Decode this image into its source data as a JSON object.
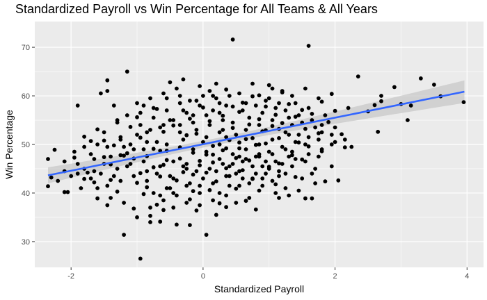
{
  "chart_data": {
    "type": "scatter",
    "title": "Standardized Payroll vs Win Percentage for All Teams & All Years",
    "xlabel": "Standardized Payroll",
    "ylabel": "Win Percentage",
    "xlim": [
      -2.55,
      4.25
    ],
    "ylim": [
      24.7,
      75.3
    ],
    "xticks": [
      -2,
      0,
      2,
      4
    ],
    "yticks": [
      30,
      40,
      50,
      60,
      70
    ],
    "grid": true,
    "legend": "none",
    "colors": {
      "panel": "#ebebeb",
      "grid": "#ffffff",
      "points": "#000000",
      "trend_line": "#3366ff",
      "confidence_band": "#c8c8c8"
    },
    "trend": {
      "method": "linear",
      "intercept": 50.05,
      "slope": 2.73,
      "x_range": [
        -2.35,
        3.96
      ],
      "se_at_mean": 0.35,
      "se_slope": 0.3
    },
    "points": [
      [
        -2.35,
        47.0
      ],
      [
        -2.3,
        43.2
      ],
      [
        -2.25,
        48.9
      ],
      [
        -2.35,
        41.4
      ],
      [
        -2.1,
        40.2
      ],
      [
        -2.05,
        40.2
      ],
      [
        -1.9,
        58.0
      ],
      [
        -1.95,
        48.5
      ],
      [
        -1.95,
        47.3
      ],
      [
        -1.8,
        51.6
      ],
      [
        -1.8,
        42.9
      ],
      [
        -1.7,
        50.7
      ],
      [
        -1.65,
        42.2
      ],
      [
        -1.65,
        44.5
      ],
      [
        -1.6,
        53.1
      ],
      [
        -1.6,
        38.9
      ],
      [
        -1.55,
        60.5
      ],
      [
        -1.5,
        50.8
      ],
      [
        -1.5,
        47.4
      ],
      [
        -1.45,
        63.2
      ],
      [
        -1.45,
        37.5
      ],
      [
        -1.4,
        45.9
      ],
      [
        -1.4,
        42.7
      ],
      [
        -1.35,
        49.8
      ],
      [
        -1.3,
        40.3
      ],
      [
        -1.3,
        54.5
      ],
      [
        -1.25,
        51.5
      ],
      [
        -1.2,
        31.4
      ],
      [
        -1.2,
        47.7
      ],
      [
        -1.15,
        48.2
      ],
      [
        -1.15,
        65.0
      ],
      [
        -1.1,
        53.6
      ],
      [
        -1.05,
        47.1
      ],
      [
        -1.0,
        55.6
      ],
      [
        -1.0,
        42.1
      ],
      [
        -0.95,
        51.4
      ],
      [
        -0.95,
        44.1
      ],
      [
        -0.9,
        58.0
      ],
      [
        -0.9,
        39.8
      ],
      [
        -0.85,
        47.6
      ],
      [
        -0.85,
        50.5
      ],
      [
        -0.8,
        35.3
      ],
      [
        -0.75,
        45.3
      ],
      [
        -0.75,
        49.1
      ],
      [
        -0.7,
        57.3
      ],
      [
        -0.7,
        37.6
      ],
      [
        -0.65,
        43.4
      ],
      [
        -0.65,
        34.1
      ],
      [
        -0.6,
        52.6
      ],
      [
        -0.6,
        45.8
      ],
      [
        -0.55,
        48.7
      ],
      [
        -0.5,
        41.0
      ],
      [
        -0.5,
        62.8
      ],
      [
        -0.45,
        46.5
      ],
      [
        -0.45,
        53.9
      ],
      [
        -0.4,
        42.6
      ],
      [
        -0.4,
        33.5
      ],
      [
        -0.35,
        60.0
      ],
      [
        -0.35,
        49.4
      ],
      [
        -0.3,
        44.3
      ],
      [
        -0.3,
        63.4
      ],
      [
        -0.25,
        51.9
      ],
      [
        -0.25,
        46.0
      ],
      [
        -0.2,
        38.7
      ],
      [
        -0.2,
        55.3
      ],
      [
        -0.15,
        43.8
      ],
      [
        -0.15,
        48.3
      ],
      [
        -0.1,
        36.4
      ],
      [
        -0.1,
        52.2
      ],
      [
        -0.05,
        45.7
      ],
      [
        -0.05,
        41.5
      ],
      [
        0.0,
        50.5
      ],
      [
        0.0,
        57.6
      ],
      [
        0.05,
        47.9
      ],
      [
        0.05,
        44.2
      ],
      [
        0.1,
        54.8
      ],
      [
        0.1,
        40.6
      ],
      [
        0.15,
        49.7
      ],
      [
        0.15,
        46.3
      ],
      [
        0.2,
        59.5
      ],
      [
        0.2,
        42.4
      ],
      [
        0.25,
        52.5
      ],
      [
        0.25,
        37.9
      ],
      [
        0.3,
        48.8
      ],
      [
        0.3,
        55.9
      ],
      [
        0.35,
        45.1
      ],
      [
        0.35,
        61.3
      ],
      [
        0.4,
        50.9
      ],
      [
        0.4,
        43.5
      ],
      [
        0.45,
        71.6
      ],
      [
        0.45,
        53.4
      ],
      [
        0.5,
        47.2
      ],
      [
        0.5,
        40.9
      ],
      [
        0.55,
        56.7
      ],
      [
        0.55,
        49.2
      ],
      [
        0.6,
        44.7
      ],
      [
        0.6,
        58.6
      ],
      [
        0.65,
        51.1
      ],
      [
        0.65,
        38.4
      ],
      [
        0.7,
        54.1
      ],
      [
        0.7,
        46.7
      ],
      [
        0.75,
        42.9
      ],
      [
        0.75,
        59.9
      ],
      [
        0.8,
        49.9
      ],
      [
        0.8,
        36.6
      ],
      [
        0.85,
        55.2
      ],
      [
        0.85,
        47.5
      ],
      [
        0.9,
        52.7
      ],
      [
        0.9,
        43.0
      ],
      [
        0.95,
        57.8
      ],
      [
        0.95,
        50.2
      ],
      [
        1.0,
        45.4
      ],
      [
        1.0,
        62.2
      ],
      [
        1.05,
        53.8
      ],
      [
        1.05,
        48.0
      ],
      [
        1.1,
        41.8
      ],
      [
        1.1,
        56.1
      ],
      [
        1.15,
        51.3
      ],
      [
        1.15,
        46.1
      ],
      [
        1.2,
        60.7
      ],
      [
        1.2,
        54.4
      ],
      [
        1.25,
        49.0
      ],
      [
        1.25,
        44.0
      ],
      [
        1.3,
        58.3
      ],
      [
        1.3,
        52.0
      ],
      [
        1.35,
        47.8
      ],
      [
        1.4,
        55.7
      ],
      [
        1.4,
        43.3
      ],
      [
        1.45,
        50.4
      ],
      [
        1.5,
        57.1
      ],
      [
        1.5,
        46.9
      ],
      [
        1.55,
        38.9
      ],
      [
        1.55,
        53.2
      ],
      [
        1.6,
        70.3
      ],
      [
        1.6,
        49.6
      ],
      [
        1.65,
        56.3
      ],
      [
        1.7,
        45.0
      ],
      [
        1.75,
        52.3
      ],
      [
        1.8,
        58.8
      ],
      [
        1.8,
        48.6
      ],
      [
        1.85,
        42.4
      ],
      [
        1.9,
        54.6
      ],
      [
        1.95,
        50.0
      ],
      [
        1.95,
        60.4
      ],
      [
        2.0,
        56.9
      ],
      [
        2.05,
        42.6
      ],
      [
        2.1,
        52.1
      ],
      [
        2.15,
        49.4
      ],
      [
        2.2,
        57.5
      ],
      [
        2.35,
        64.0
      ],
      [
        2.5,
        56.8
      ],
      [
        2.6,
        58.1
      ],
      [
        2.65,
        52.6
      ],
      [
        2.7,
        58.9
      ],
      [
        2.7,
        60.0
      ],
      [
        2.9,
        61.8
      ],
      [
        3.0,
        58.3
      ],
      [
        3.1,
        55.0
      ],
      [
        3.15,
        58.0
      ],
      [
        3.3,
        63.6
      ],
      [
        3.5,
        62.3
      ],
      [
        3.6,
        59.9
      ],
      [
        3.95,
        58.7
      ],
      [
        -1.45,
        61.0
      ],
      [
        -0.95,
        26.5
      ],
      [
        0.05,
        31.4
      ],
      [
        -0.2,
        33.4
      ],
      [
        0.35,
        37.1
      ],
      [
        -1.05,
        36.8
      ],
      [
        1.65,
        38.9
      ],
      [
        -0.45,
        40.0
      ],
      [
        -0.15,
        40.4
      ],
      [
        -0.65,
        48.7
      ],
      [
        -0.55,
        46.8
      ],
      [
        -0.35,
        47.1
      ],
      [
        -0.25,
        45.0
      ],
      [
        -0.05,
        46.6
      ],
      [
        0.15,
        47.9
      ],
      [
        0.35,
        49.2
      ],
      [
        0.55,
        50.4
      ],
      [
        0.75,
        51.3
      ],
      [
        0.95,
        52.9
      ],
      [
        1.15,
        53.2
      ],
      [
        1.35,
        54.0
      ],
      [
        -1.25,
        47.8
      ],
      [
        -1.15,
        45.5
      ],
      [
        -1.35,
        43.5
      ],
      [
        -1.55,
        44.0
      ],
      [
        -1.75,
        44.2
      ],
      [
        -0.85,
        41.2
      ],
      [
        -0.75,
        40.0
      ],
      [
        0.25,
        56.5
      ],
      [
        0.45,
        57.8
      ],
      [
        0.65,
        58.5
      ],
      [
        0.85,
        60.1
      ],
      [
        1.05,
        61.5
      ],
      [
        -0.5,
        55.0
      ],
      [
        -0.3,
        57.0
      ],
      [
        -0.1,
        59.0
      ],
      [
        0.1,
        61.0
      ],
      [
        0.3,
        53.0
      ],
      [
        -0.6,
        54.0
      ],
      [
        -0.8,
        53.0
      ],
      [
        -1.0,
        52.0
      ],
      [
        0.9,
        41.5
      ],
      [
        1.1,
        40.0
      ],
      [
        1.3,
        39.5
      ],
      [
        0.5,
        38.0
      ],
      [
        0.7,
        39.0
      ],
      [
        -0.4,
        39.5
      ],
      [
        -0.6,
        38.5
      ],
      [
        -0.8,
        37.0
      ],
      [
        -0.2,
        42.0
      ],
      [
        0.0,
        43.0
      ],
      [
        0.2,
        44.5
      ],
      [
        0.4,
        45.5
      ],
      [
        0.6,
        46.5
      ],
      [
        0.8,
        47.5
      ],
      [
        1.0,
        48.5
      ],
      [
        1.2,
        49.5
      ],
      [
        1.4,
        50.5
      ],
      [
        1.6,
        51.5
      ],
      [
        1.8,
        52.5
      ],
      [
        2.0,
        53.5
      ],
      [
        -1.1,
        50.0
      ],
      [
        -0.9,
        49.0
      ],
      [
        -0.7,
        50.5
      ],
      [
        -0.3,
        51.0
      ],
      [
        -0.1,
        53.0
      ],
      [
        0.1,
        54.0
      ],
      [
        0.3,
        55.0
      ],
      [
        0.5,
        52.0
      ],
      [
        0.7,
        55.5
      ],
      [
        0.9,
        56.5
      ],
      [
        1.1,
        57.5
      ],
      [
        1.3,
        55.5
      ],
      [
        1.5,
        54.5
      ],
      [
        1.7,
        53.5
      ],
      [
        -1.3,
        55.0
      ],
      [
        -1.5,
        52.5
      ],
      [
        -1.7,
        48.0
      ],
      [
        -1.9,
        46.0
      ],
      [
        -2.1,
        44.5
      ],
      [
        -2.2,
        42.5
      ],
      [
        -2.0,
        43.5
      ],
      [
        -1.8,
        45.0
      ],
      [
        -1.6,
        41.0
      ],
      [
        -1.4,
        39.0
      ],
      [
        -1.2,
        38.0
      ],
      [
        -1.0,
        35.0
      ],
      [
        -0.8,
        34.0
      ],
      [
        -0.6,
        36.5
      ],
      [
        0.2,
        35.5
      ],
      [
        0.4,
        41.5
      ],
      [
        0.6,
        43.0
      ],
      [
        0.8,
        44.0
      ],
      [
        1.0,
        45.0
      ],
      [
        1.2,
        46.0
      ],
      [
        1.4,
        47.0
      ],
      [
        1.6,
        48.0
      ],
      [
        1.8,
        49.0
      ],
      [
        2.0,
        50.5
      ],
      [
        -0.05,
        62.0
      ],
      [
        0.15,
        60.0
      ],
      [
        0.35,
        58.0
      ],
      [
        0.55,
        60.5
      ],
      [
        0.75,
        62.5
      ],
      [
        0.95,
        59.0
      ],
      [
        1.15,
        58.5
      ],
      [
        1.35,
        60.0
      ],
      [
        1.55,
        61.5
      ],
      [
        1.75,
        59.5
      ],
      [
        -0.15,
        56.0
      ],
      [
        -0.35,
        58.5
      ],
      [
        -0.55,
        59.5
      ],
      [
        -0.75,
        57.5
      ],
      [
        -0.95,
        56.5
      ],
      [
        0.05,
        56.0
      ],
      [
        0.25,
        58.5
      ],
      [
        0.45,
        54.5
      ],
      [
        0.65,
        53.0
      ],
      [
        0.85,
        54.0
      ],
      [
        1.05,
        55.0
      ],
      [
        1.25,
        57.0
      ],
      [
        1.45,
        52.0
      ],
      [
        -0.45,
        43.0
      ],
      [
        -0.25,
        41.5
      ],
      [
        -0.05,
        40.0
      ],
      [
        0.15,
        42.0
      ],
      [
        0.35,
        43.5
      ],
      [
        0.55,
        44.5
      ],
      [
        0.75,
        45.5
      ],
      [
        0.95,
        46.5
      ],
      [
        1.15,
        44.5
      ],
      [
        1.35,
        45.5
      ],
      [
        1.55,
        46.5
      ],
      [
        1.75,
        47.5
      ],
      [
        1.95,
        45.5
      ],
      [
        -0.65,
        45.5
      ],
      [
        -0.85,
        44.5
      ],
      [
        -1.05,
        43.5
      ],
      [
        -1.25,
        42.5
      ],
      [
        -1.45,
        41.5
      ],
      [
        -0.55,
        50.0
      ],
      [
        -0.35,
        52.5
      ],
      [
        -0.15,
        54.5
      ],
      [
        0.05,
        51.5
      ],
      [
        0.25,
        50.0
      ],
      [
        0.45,
        48.0
      ],
      [
        0.65,
        49.0
      ],
      [
        0.85,
        50.0
      ],
      [
        1.05,
        51.0
      ],
      [
        1.25,
        52.5
      ],
      [
        1.45,
        56.0
      ],
      [
        1.65,
        55.0
      ],
      [
        1.85,
        56.0
      ],
      [
        -1.35,
        58.0
      ],
      [
        -1.15,
        56.0
      ],
      [
        -0.95,
        54.0
      ],
      [
        -0.75,
        55.5
      ],
      [
        -0.55,
        57.0
      ],
      [
        -0.35,
        54.0
      ],
      [
        -0.15,
        49.0
      ],
      [
        0.05,
        48.5
      ],
      [
        0.25,
        47.0
      ],
      [
        0.45,
        46.0
      ],
      [
        0.65,
        47.0
      ],
      [
        0.85,
        48.0
      ],
      [
        1.05,
        42.5
      ],
      [
        1.25,
        41.0
      ],
      [
        1.45,
        40.5
      ],
      [
        1.65,
        44.0
      ],
      [
        -1.85,
        41.0
      ],
      [
        -1.65,
        47.0
      ],
      [
        -1.45,
        49.5
      ],
      [
        -1.25,
        51.0
      ],
      [
        -1.05,
        49.0
      ],
      [
        -0.85,
        52.5
      ],
      [
        -0.65,
        53.5
      ],
      [
        -0.45,
        55.0
      ],
      [
        -0.25,
        56.5
      ],
      [
        -0.05,
        58.0
      ],
      [
        0.15,
        57.0
      ],
      [
        0.35,
        51.5
      ],
      [
        0.55,
        47.5
      ],
      [
        0.75,
        43.0
      ],
      [
        0.95,
        44.0
      ],
      [
        1.15,
        43.5
      ],
      [
        1.35,
        48.5
      ],
      [
        1.55,
        50.0
      ],
      [
        1.75,
        51.0
      ],
      [
        1.95,
        52.0
      ],
      [
        2.15,
        51.0
      ],
      [
        2.25,
        49.5
      ],
      [
        -0.7,
        44.0
      ],
      [
        -0.5,
        43.5
      ],
      [
        -0.3,
        45.5
      ],
      [
        -0.1,
        44.5
      ],
      [
        0.1,
        45.0
      ],
      [
        0.3,
        46.0
      ],
      [
        0.5,
        44.0
      ],
      [
        0.7,
        42.0
      ],
      [
        0.9,
        45.5
      ],
      [
        1.1,
        46.5
      ],
      [
        1.3,
        47.5
      ],
      [
        1.5,
        43.0
      ],
      [
        1.7,
        42.0
      ],
      [
        -0.9,
        46.5
      ],
      [
        -1.1,
        46.0
      ],
      [
        -1.3,
        45.0
      ],
      [
        -1.5,
        46.0
      ],
      [
        -1.7,
        43.0
      ],
      [
        -1.9,
        44.0
      ],
      [
        -2.1,
        46.5
      ],
      [
        -1.0,
        58.5
      ],
      [
        -0.8,
        59.5
      ],
      [
        -0.6,
        60.5
      ],
      [
        -0.4,
        61.5
      ],
      [
        -0.2,
        59.0
      ],
      [
        0.0,
        60.0
      ],
      [
        0.2,
        62.5
      ],
      [
        0.4,
        60.0
      ],
      [
        0.6,
        57.0
      ],
      [
        0.8,
        58.0
      ],
      [
        1.0,
        59.5
      ],
      [
        1.2,
        61.0
      ],
      [
        1.4,
        58.5
      ],
      [
        1.6,
        57.5
      ],
      [
        1.8,
        54.0
      ],
      [
        -1.2,
        49.5
      ],
      [
        -1.4,
        47.5
      ],
      [
        -1.6,
        50.0
      ],
      [
        -1.8,
        49.5
      ],
      [
        -0.05,
        37.5
      ],
      [
        0.15,
        38.5
      ],
      [
        0.35,
        39.5
      ],
      [
        -0.85,
        42.5
      ],
      [
        -0.55,
        41.0
      ],
      [
        -0.25,
        38.0
      ],
      [
        0.55,
        41.5
      ],
      [
        0.85,
        40.5
      ],
      [
        1.15,
        39.0
      ],
      [
        0.25,
        40.0
      ],
      [
        -0.45,
        37.0
      ],
      [
        -0.65,
        39.5
      ]
    ]
  }
}
